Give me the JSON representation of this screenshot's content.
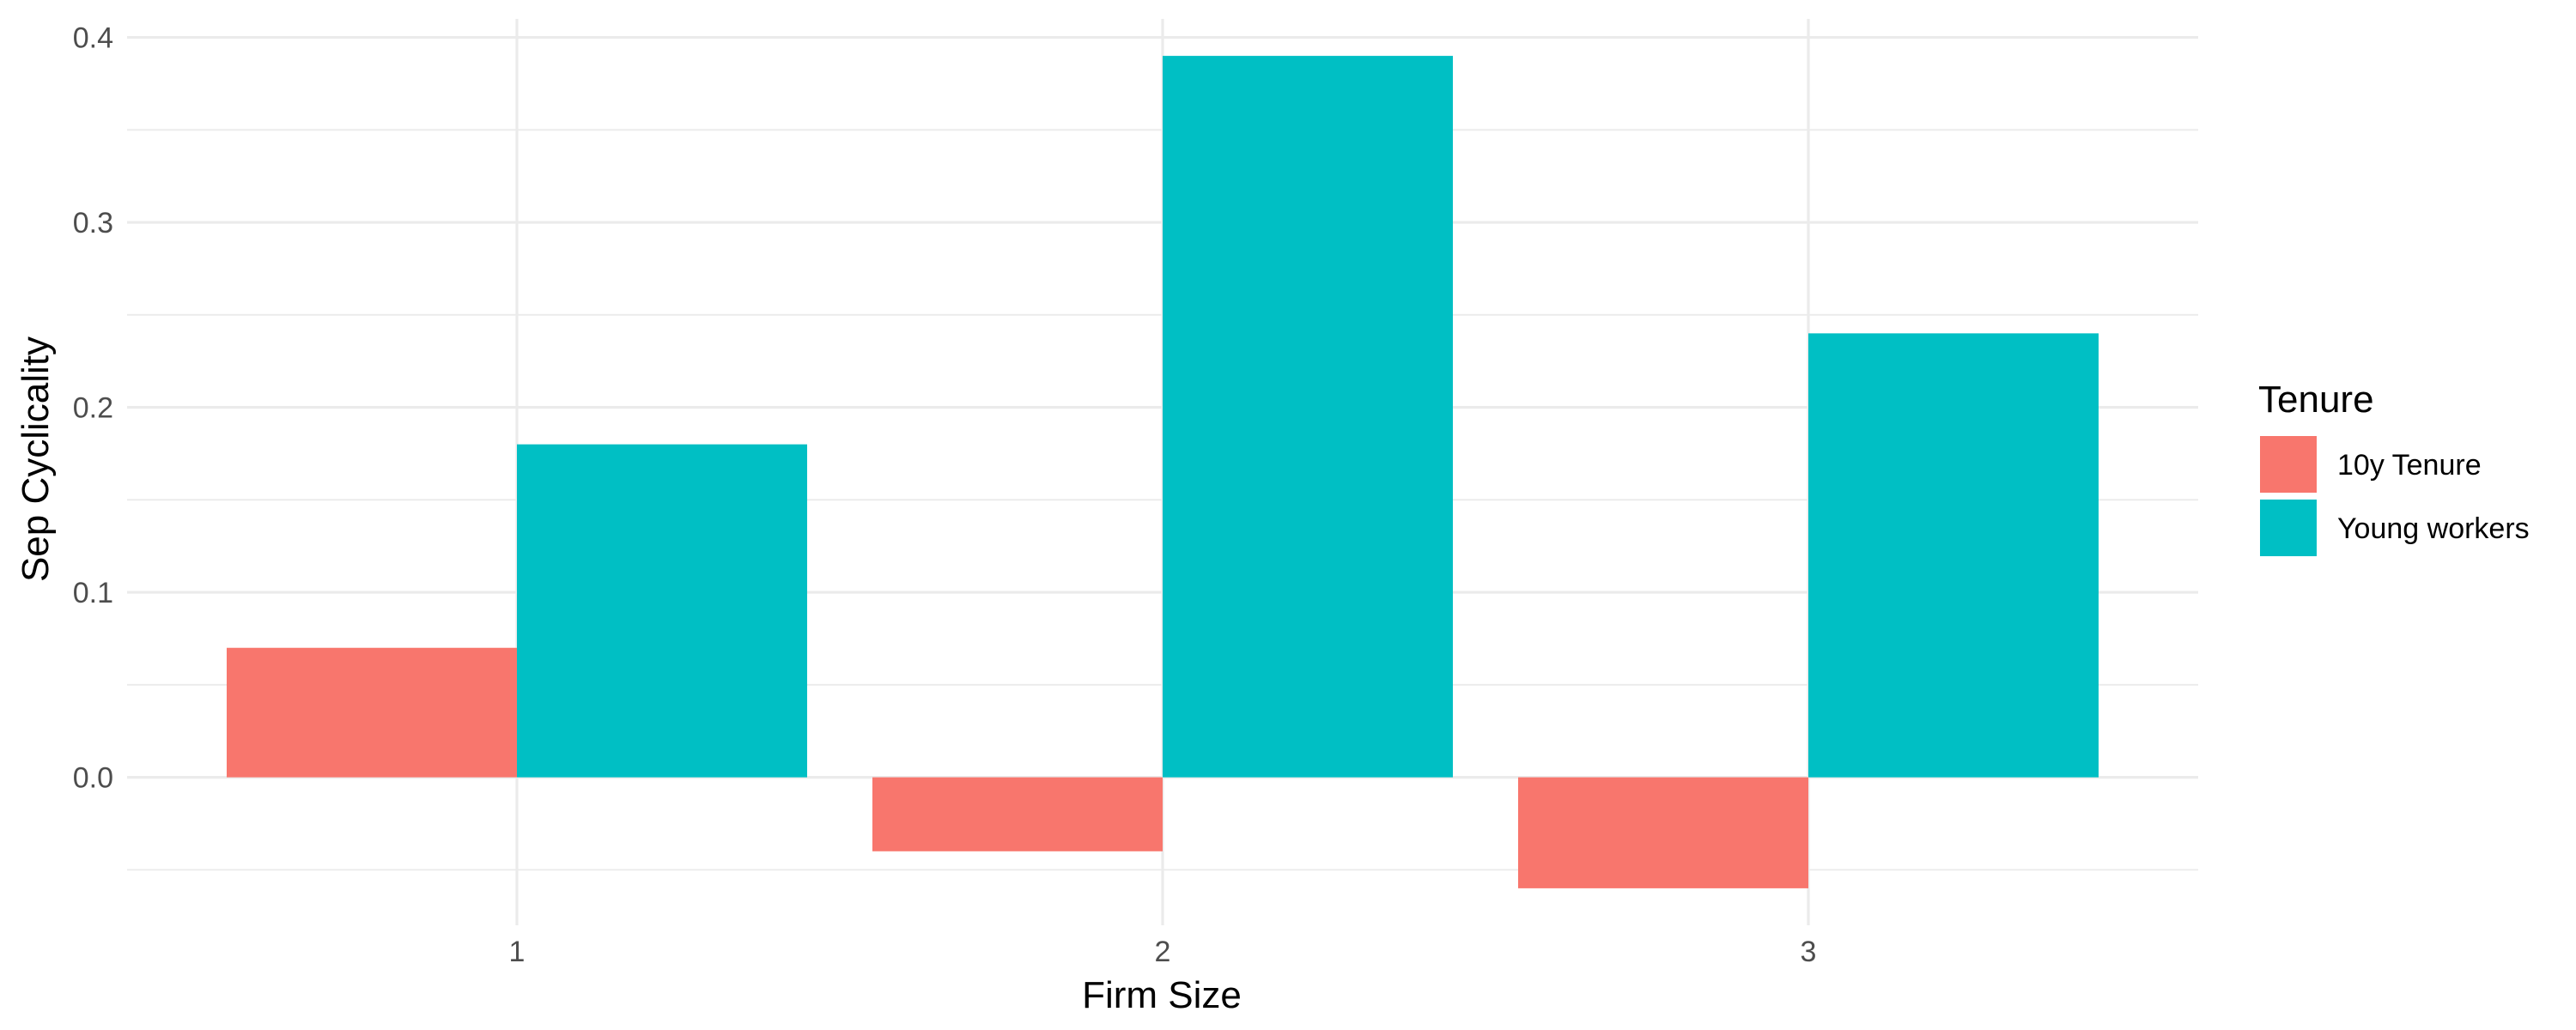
{
  "chart_data": {
    "type": "bar",
    "title": "",
    "xlabel": "Firm Size",
    "ylabel": "Sep Cyclicality",
    "categories": [
      "1",
      "2",
      "3"
    ],
    "ylim": [
      -0.08,
      0.41
    ],
    "y_ticks": [
      0.0,
      0.1,
      0.2,
      0.3,
      0.4
    ],
    "y_tick_labels": [
      "0.0",
      "0.1",
      "0.2",
      "0.3",
      "0.4"
    ],
    "grid": true,
    "legend": {
      "title": "Tenure",
      "position": "right"
    },
    "series": [
      {
        "name": "10y Tenure",
        "color": "#F8766D",
        "values": [
          0.07,
          -0.04,
          -0.06
        ]
      },
      {
        "name": "Young workers",
        "color": "#00BFC4",
        "values": [
          0.18,
          0.39,
          0.24
        ]
      }
    ]
  }
}
